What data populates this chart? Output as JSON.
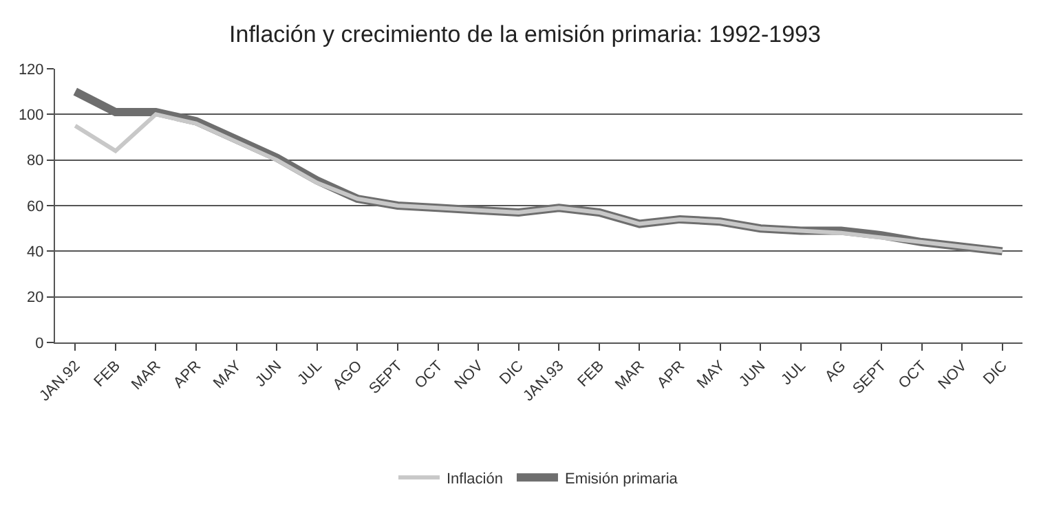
{
  "chart_data": {
    "type": "line",
    "title": "Inflación y crecimiento de la emisión primaria: 1992-1993",
    "categories": [
      "JAN.92",
      "FEB",
      "MAR",
      "APR",
      "MAY",
      "JUN",
      "JUL",
      "AGO",
      "SEPT",
      "OCT",
      "NOV",
      "DIC",
      "JAN.93",
      "FEB",
      "MAR",
      "APR",
      "MAY",
      "JUN",
      "JUL",
      "AG",
      "SEPT",
      "OCT",
      "NOV",
      "DIC"
    ],
    "series": [
      {
        "name": "Inflación",
        "color": "#c8c8c8",
        "values": [
          95,
          84,
          100,
          96,
          88,
          80,
          70,
          63,
          60,
          59,
          58,
          57,
          59,
          57,
          52,
          54,
          53,
          50,
          49,
          48,
          46,
          44,
          42,
          40
        ]
      },
      {
        "name": "Emisión primaria",
        "color": "#6e6e6e",
        "values": [
          110,
          101,
          101,
          97,
          89,
          81,
          71,
          63,
          60,
          59,
          58,
          57,
          59,
          57,
          52,
          54,
          53,
          50,
          49,
          49,
          47,
          44,
          42,
          40
        ]
      }
    ],
    "ylim": [
      0,
      120
    ],
    "yticks": [
      0,
      20,
      40,
      60,
      80,
      100,
      120
    ],
    "grid": "y",
    "legend": "bottom",
    "marker": "none",
    "line_style": "solid"
  }
}
